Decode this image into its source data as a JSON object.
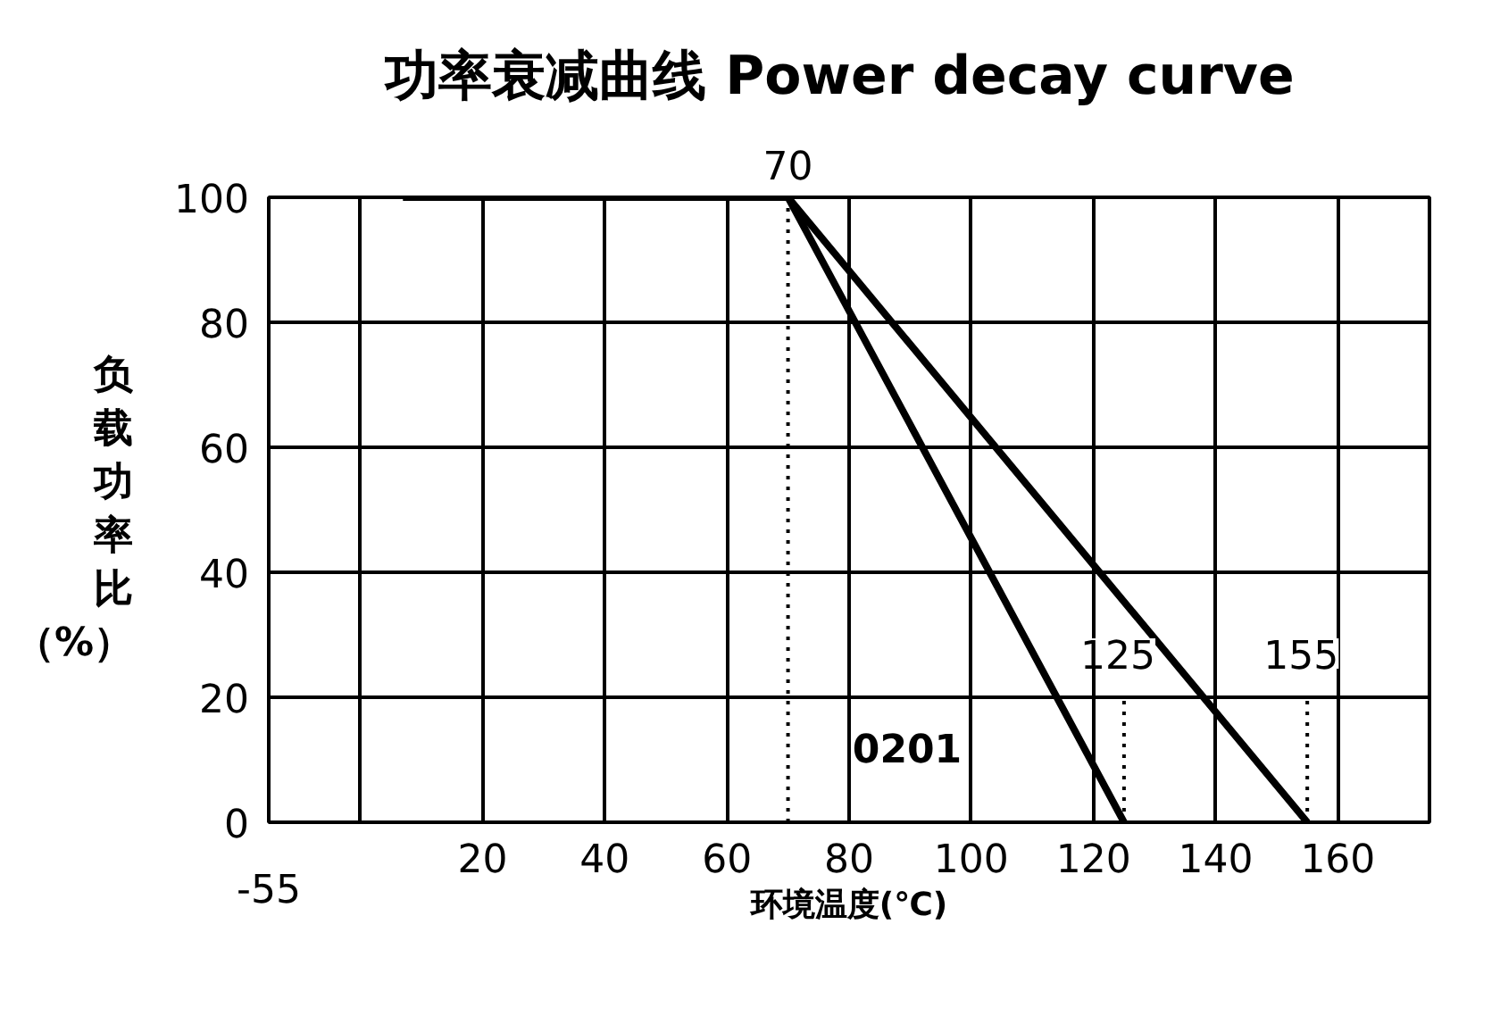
{
  "chart_data": {
    "type": "line",
    "title": "功率衰减曲线  Power decay curve",
    "xlabel": "环境温度(℃)",
    "ylabel": "负载功率比（%）",
    "xlim": [
      -15,
      175
    ],
    "ylim": [
      0,
      100
    ],
    "xticks": [
      {
        "value": 0,
        "label": null
      },
      20,
      40,
      60,
      80,
      100,
      120,
      140,
      160
    ],
    "yticks": [
      0,
      20,
      40,
      60,
      80,
      100
    ],
    "grid": true,
    "marker": "none",
    "line_style": "solid",
    "series": [
      {
        "color": "#000000",
        "x": [
          7,
          70,
          125
        ],
        "values": [
          100,
          100,
          0
        ]
      },
      {
        "color": "#000000",
        "x": [
          7,
          70,
          155
        ],
        "values": [
          100,
          100,
          0
        ]
      },
      {
        "color": "#000000",
        "x": [
          70,
          70
        ],
        "values": [
          0,
          100
        ],
        "line_style": "dotted"
      },
      {
        "color": "#000000",
        "x": [
          125,
          125
        ],
        "values": [
          0,
          20
        ],
        "line_style": "dotted"
      },
      {
        "color": "#000000",
        "x": [
          155,
          155
        ],
        "values": [
          0,
          20
        ],
        "line_style": "dotted"
      }
    ],
    "annotations": [
      {
        "text": "70",
        "x": 70,
        "y": 100
      },
      {
        "text": "125",
        "x": 124,
        "y": 27
      },
      {
        "text": "155",
        "x": 154,
        "y": 27
      },
      "-55",
      "0201"
    ]
  }
}
